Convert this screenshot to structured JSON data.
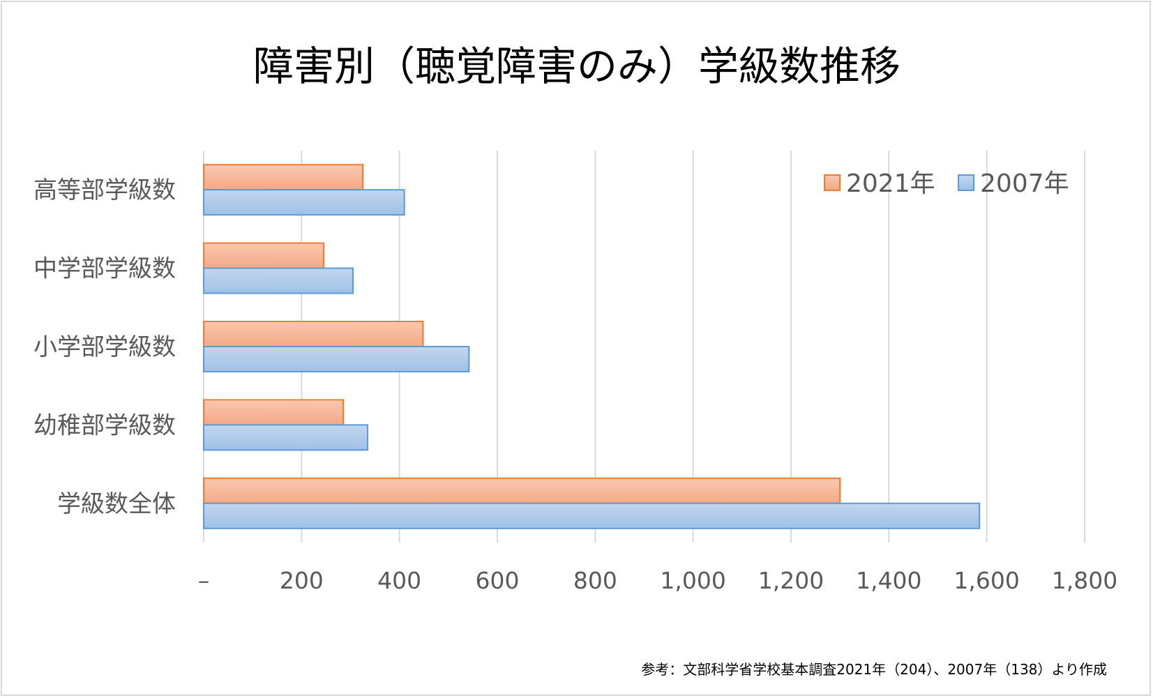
{
  "chart_data": {
    "type": "bar",
    "orientation": "horizontal",
    "title": "障害別（聴覚障害のみ）学級数推移",
    "categories": [
      "高等部学級数",
      "中学部学級数",
      "小学部学級数",
      "幼稚部学級数",
      "学級数全体"
    ],
    "series": [
      {
        "name": "2021年",
        "values": [
          325,
          245,
          448,
          285,
          1300
        ],
        "color": "#ed7d31",
        "fill_top": "#f9c8b1",
        "fill_bottom": "#f4a986"
      },
      {
        "name": "2007年",
        "values": [
          410,
          305,
          542,
          335,
          1585
        ],
        "color": "#5b9bd5",
        "fill_top": "#c2d7ef",
        "fill_bottom": "#9fc1e6"
      }
    ],
    "xlim": [
      0,
      1800
    ],
    "x_ticks": [
      {
        "value": 0,
        "label": "–"
      },
      {
        "value": 200,
        "label": "200"
      },
      {
        "value": 400,
        "label": "400"
      },
      {
        "value": 600,
        "label": "600"
      },
      {
        "value": 800,
        "label": "800"
      },
      {
        "value": 1000,
        "label": "1,000"
      },
      {
        "value": 1200,
        "label": "1,200"
      },
      {
        "value": 1400,
        "label": "1,400"
      },
      {
        "value": 1600,
        "label": "1,600"
      },
      {
        "value": 1800,
        "label": "1,800"
      }
    ],
    "grid": true,
    "legend_position": "top-right",
    "source_note": "参考：文部科学省学校基本調査2021年（204）、2007年（138）より作成"
  }
}
